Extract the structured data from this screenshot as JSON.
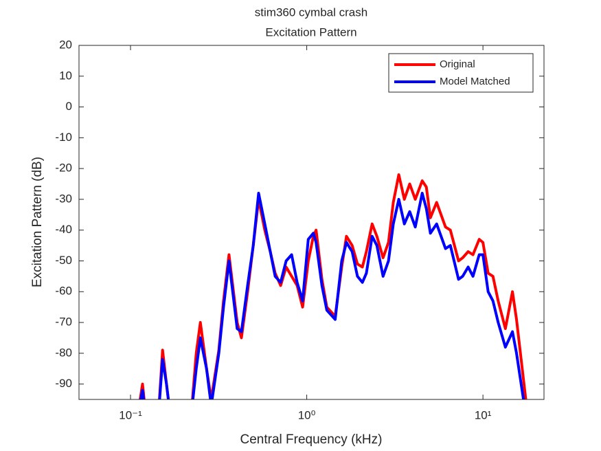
{
  "chart_data": {
    "type": "line",
    "title": "stim360 cymbal crash",
    "subtitle": "Excitation Pattern",
    "xlabel": "Central Frequency (kHz)",
    "ylabel": "Excitation Pattern (dB)",
    "log_x": true,
    "legend": "upper-right",
    "x": [
      0.11,
      0.117,
      0.122,
      0.144,
      0.152,
      0.16,
      0.168,
      0.221,
      0.236,
      0.249,
      0.27,
      0.287,
      0.317,
      0.337,
      0.362,
      0.403,
      0.426,
      0.462,
      0.497,
      0.533,
      0.578,
      0.621,
      0.662,
      0.711,
      0.764,
      0.821,
      0.882,
      0.948,
      1.02,
      1.09,
      1.13,
      1.22,
      1.3,
      1.45,
      1.58,
      1.68,
      1.81,
      1.94,
      2.07,
      2.18,
      2.35,
      2.5,
      2.71,
      2.91,
      3.1,
      3.33,
      3.58,
      3.84,
      4.13,
      4.52,
      4.77,
      5.03,
      5.46,
      6.13,
      6.53,
      7.27,
      7.67,
      8.24,
      8.78,
      9.52,
      10.0,
      10.7,
      11.4,
      12.2,
      13.4,
      14.7,
      15.5,
      17.5,
      18.3
    ],
    "series": [
      {
        "name": "Original",
        "color": "#ff0000",
        "values": [
          -100,
          -90,
          -100,
          -100,
          -79,
          -90,
          -100,
          -100,
          -80,
          -70,
          -85,
          -95,
          -79,
          -63,
          -48,
          -70,
          -75,
          -60,
          -45,
          -30,
          -40,
          -47,
          -54,
          -58,
          -52,
          -55,
          -58,
          -65,
          -50,
          -42,
          -40,
          -56,
          -65,
          -68,
          -52,
          -42,
          -45,
          -51,
          -52,
          -47,
          -38,
          -42,
          -49,
          -44,
          -31,
          -22,
          -30,
          -25,
          -30,
          -24,
          -26,
          -36,
          -31,
          -39,
          -40,
          -50,
          -49,
          -47,
          -48,
          -43,
          -44,
          -54,
          -55,
          -63,
          -72,
          -60,
          -69,
          -95,
          -100
        ]
      },
      {
        "name": "Model Matched",
        "color": "#0000ff",
        "values": [
          -100,
          -92,
          -100,
          -100,
          -82,
          -90,
          -100,
          -100,
          -85,
          -75,
          -85,
          -97,
          -80,
          -65,
          -50,
          -72,
          -73,
          -58,
          -45,
          -28,
          -38,
          -47,
          -55,
          -57,
          -50,
          -48,
          -57,
          -63,
          -43,
          -41,
          -44,
          -58,
          -66,
          -69,
          -50,
          -44,
          -47,
          -55,
          -57,
          -54,
          -42,
          -45,
          -55,
          -50,
          -38,
          -30,
          -38,
          -34,
          -39,
          -28,
          -33,
          -41,
          -38,
          -46,
          -45,
          -56,
          -55,
          -52,
          -55,
          -48,
          -48,
          -60,
          -63,
          -70,
          -78,
          -73,
          -80,
          -100,
          -100
        ]
      }
    ],
    "xlim": [
      0.051,
      22.2
    ],
    "xticks": [
      {
        "value": 0.1,
        "label": "10⁻¹"
      },
      {
        "value": 1,
        "label": "10⁰"
      },
      {
        "value": 10,
        "label": "10¹"
      }
    ],
    "ylim": [
      -95,
      20
    ],
    "yticks": [
      -90,
      -80,
      -70,
      -60,
      -50,
      -40,
      -30,
      -20,
      -10,
      0,
      10,
      20
    ]
  }
}
